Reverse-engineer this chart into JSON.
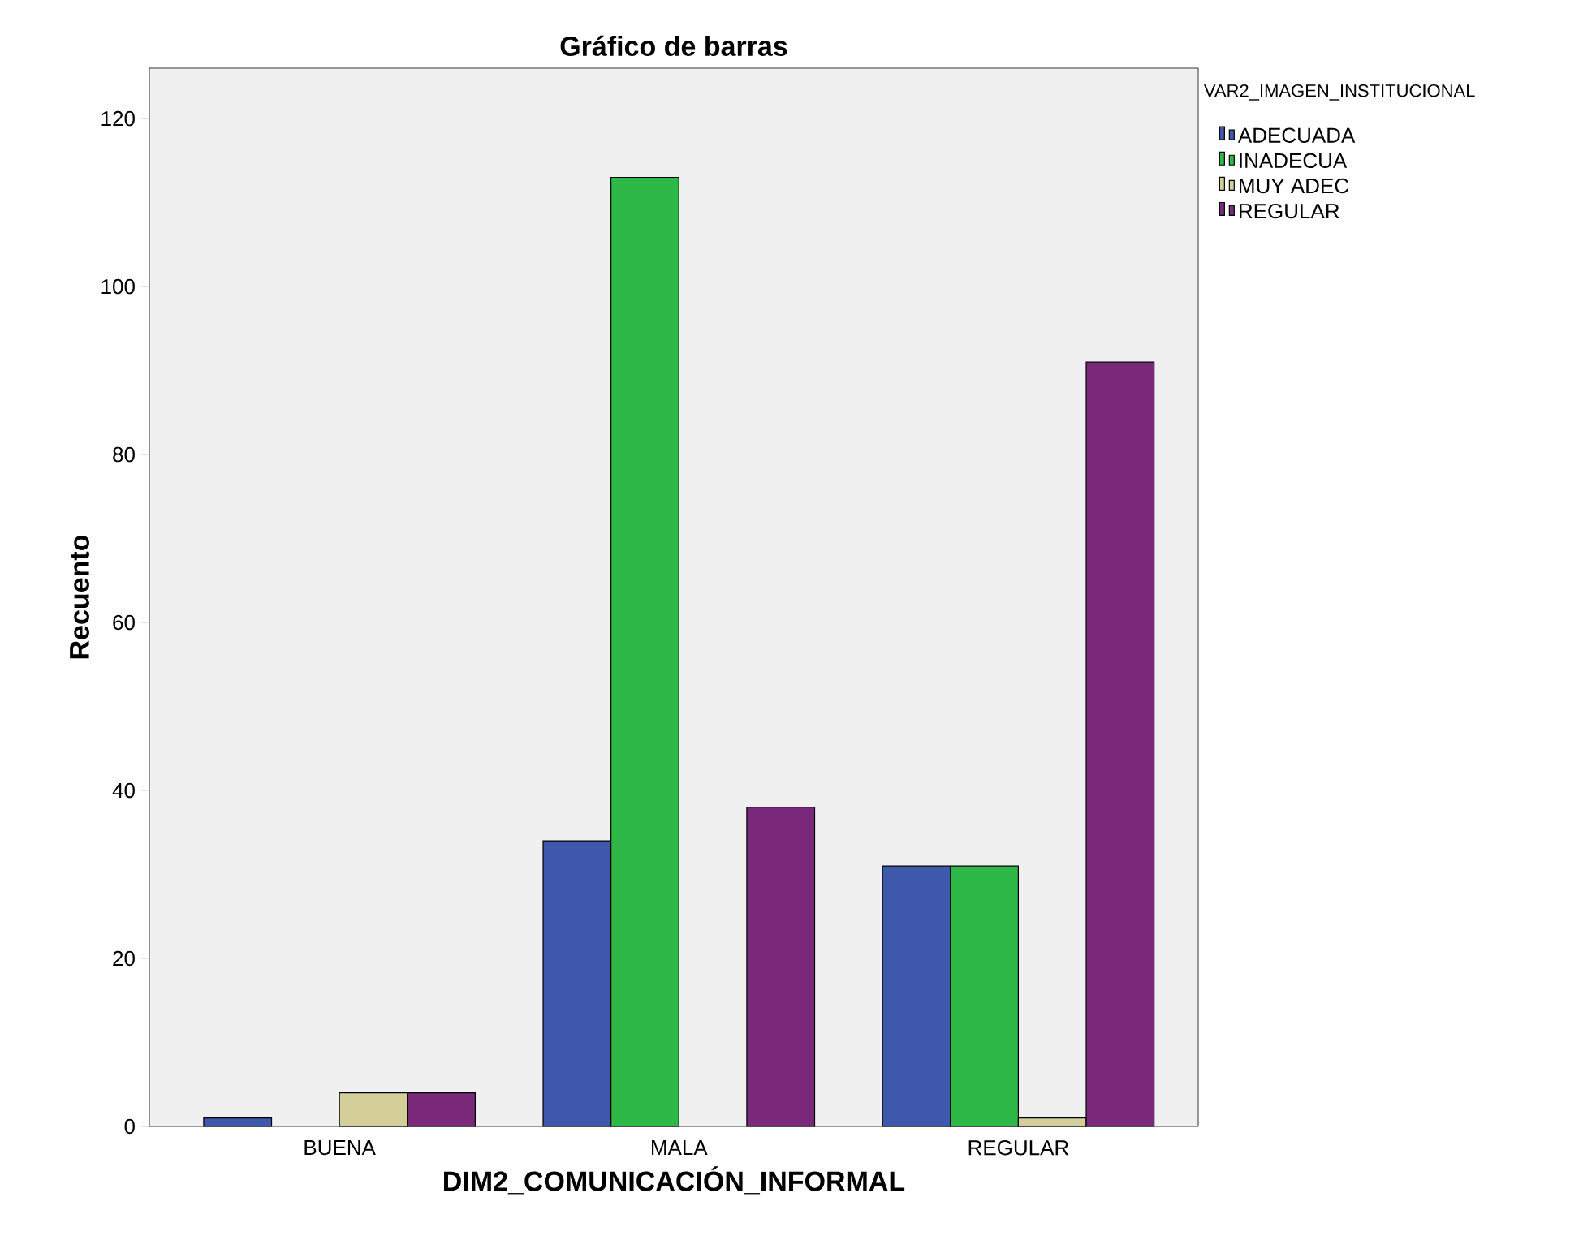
{
  "chart_data": {
    "type": "bar",
    "title": "Gráfico de barras",
    "xlabel": "DIM2_COMUNICACIÓN_INFORMAL",
    "ylabel": "Recuento",
    "legend_title": "VAR2_IMAGEN_INSTITUCIONAL",
    "categories": [
      "BUENA",
      "MALA",
      "REGULAR"
    ],
    "series": [
      {
        "name": "ADECUADA",
        "color": "#3e58ac",
        "values": [
          1,
          34,
          31
        ]
      },
      {
        "name": "INADECUA",
        "color": "#2eb848",
        "values": [
          null,
          113,
          31
        ]
      },
      {
        "name": "MUY ADEC",
        "color": "#d4cf98",
        "values": [
          4,
          null,
          1
        ]
      },
      {
        "name": "REGULAR",
        "color": "#7b2a7b",
        "values": [
          4,
          38,
          91
        ]
      }
    ],
    "ylim": [
      0,
      126
    ],
    "yticks": [
      0,
      20,
      40,
      60,
      80,
      100,
      120
    ],
    "legend": "top right"
  }
}
